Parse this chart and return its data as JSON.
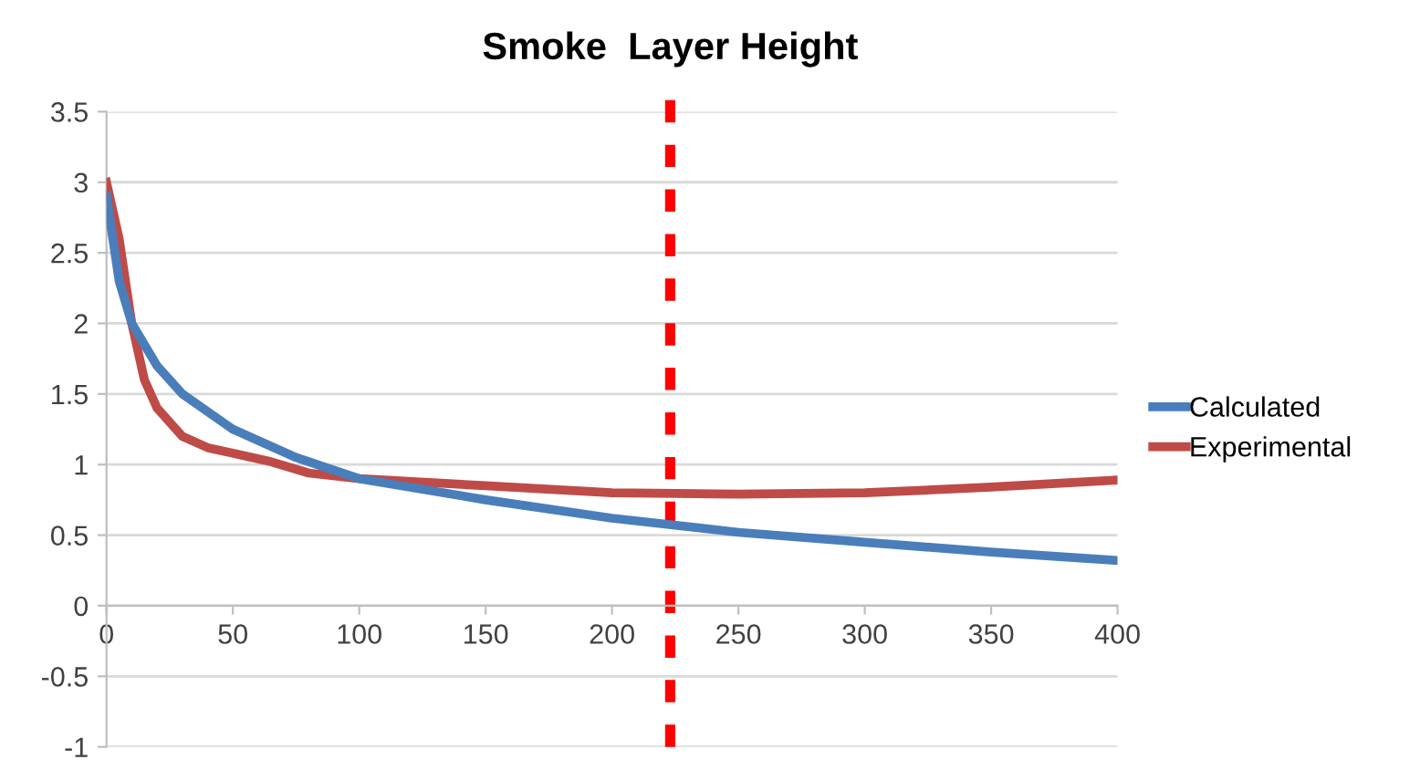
{
  "chart_data": {
    "type": "line",
    "x": [
      0,
      5,
      10,
      20,
      30,
      50,
      75,
      100,
      150,
      200,
      250,
      300,
      350,
      400
    ],
    "series": [
      {
        "name": "Calculated",
        "color": "#4a7ebb",
        "values": [
          2.9,
          2.3,
          2.0,
          1.7,
          1.5,
          1.25,
          1.05,
          0.9,
          0.75,
          0.62,
          0.52,
          0.45,
          0.38,
          0.32
        ]
      },
      {
        "name": "Experimental",
        "color": "#be4b48",
        "x": [
          0,
          5,
          10,
          15,
          20,
          30,
          40,
          50,
          65,
          80,
          100,
          150,
          200,
          250,
          300,
          350,
          400
        ],
        "values": [
          3.0,
          2.6,
          2.0,
          1.6,
          1.4,
          1.2,
          1.12,
          1.08,
          1.02,
          0.94,
          0.9,
          0.85,
          0.8,
          0.79,
          0.8,
          0.84,
          0.89
        ]
      }
    ],
    "xlim": [
      0,
      400
    ],
    "xticks": [
      0,
      50,
      100,
      150,
      200,
      250,
      300,
      350,
      400
    ],
    "ylim": [
      -1,
      3.5
    ],
    "yticks": [
      -1,
      -0.5,
      0,
      0.5,
      1,
      1.5,
      2,
      2.5,
      3,
      3.5
    ],
    "ref_lines": [
      {
        "axis": "x",
        "value": 223,
        "label": "Smoke  Layer Height",
        "color": "#ff0000",
        "line_style": "dashed"
      }
    ],
    "grid": "y",
    "legend": "right",
    "marker": "none",
    "line_style": "solid"
  }
}
